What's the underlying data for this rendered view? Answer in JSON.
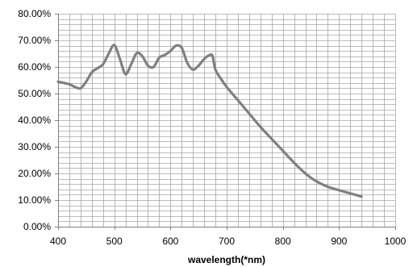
{
  "chart_data": {
    "type": "line",
    "title": "",
    "xlabel": "wavelength(*nm)",
    "ylabel": "",
    "xlim": [
      400,
      1000
    ],
    "ylim": [
      0,
      0.8
    ],
    "x_ticks": [
      400,
      500,
      600,
      700,
      800,
      900,
      1000
    ],
    "x_tick_labels": [
      "400",
      "500",
      "600",
      "700",
      "800",
      "900",
      "1000"
    ],
    "y_ticks": [
      0,
      0.1,
      0.2,
      0.3,
      0.4,
      0.5,
      0.6,
      0.7,
      0.8
    ],
    "y_tick_labels": [
      "0.00%",
      "10.00%",
      "20.00%",
      "30.00%",
      "40.00%",
      "50.00%",
      "60.00%",
      "70.00%",
      "80.00%"
    ],
    "grid": true,
    "minor_grid_x_step": 20,
    "minor_grid_y_step": 0.02,
    "legend": "none",
    "colors": {
      "line": "#808080",
      "grid": "#a6a6a6",
      "axis": "#808080"
    },
    "series": [
      {
        "x": [
          400,
          420,
          430,
          440,
          450,
          460,
          470,
          480,
          490,
          500,
          510,
          520,
          530,
          540,
          550,
          560,
          570,
          580,
          590,
          600,
          610,
          620,
          630,
          640,
          650,
          660,
          670,
          675,
          680,
          690,
          700,
          720,
          740,
          760,
          780,
          800,
          820,
          840,
          860,
          880,
          900,
          920,
          940
        ],
        "y": [
          0.545,
          0.535,
          0.525,
          0.52,
          0.545,
          0.58,
          0.595,
          0.61,
          0.65,
          0.682,
          0.63,
          0.573,
          0.61,
          0.652,
          0.64,
          0.605,
          0.6,
          0.635,
          0.645,
          0.66,
          0.68,
          0.672,
          0.615,
          0.59,
          0.605,
          0.63,
          0.645,
          0.64,
          0.59,
          0.555,
          0.525,
          0.475,
          0.425,
          0.375,
          0.33,
          0.285,
          0.24,
          0.2,
          0.17,
          0.15,
          0.137,
          0.125,
          0.113
        ]
      }
    ]
  }
}
